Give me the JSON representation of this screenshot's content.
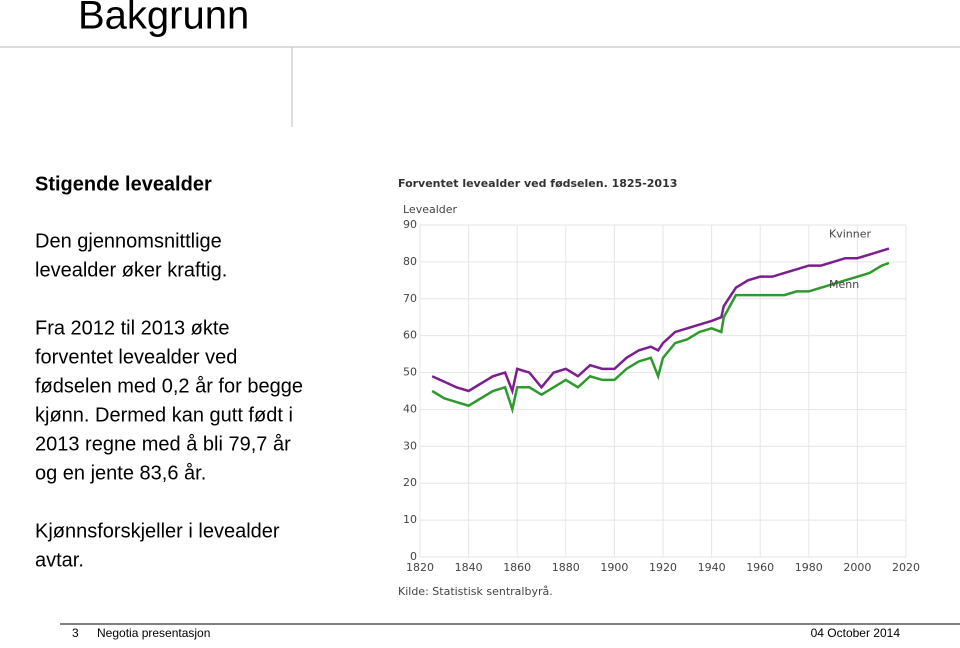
{
  "slide": {
    "title": "Bakgrunn",
    "heading": "Stigende levealder",
    "paragraphs": [
      [
        "Den gjennomsnittlige",
        "levealder øker kraftig."
      ],
      [
        "Fra 2012 til 2013 økte",
        "forventet levealder ved",
        "fødselen med 0,2 år for begge",
        "kjønn. Dermed kan gutt født i",
        "2013 regne med å bli 79,7 år",
        "og en jente 83,6 år."
      ],
      [
        "Kjønnsforskjeller i levealder",
        "avtar."
      ]
    ],
    "footer": {
      "page": "3",
      "name": "Negotia presentasjon",
      "date": "04 October 2014"
    }
  },
  "chart_data": {
    "type": "line",
    "title": "Forventet levealder ved fødselen. 1825-2013",
    "y_label": "Levealder",
    "source": "Kilde: Statistisk sentralbyrå.",
    "x": [
      1825,
      1830,
      1835,
      1840,
      1845,
      1850,
      1855,
      1858,
      1860,
      1865,
      1870,
      1875,
      1880,
      1885,
      1890,
      1895,
      1900,
      1905,
      1910,
      1915,
      1918,
      1920,
      1925,
      1930,
      1935,
      1940,
      1944,
      1945,
      1950,
      1955,
      1960,
      1965,
      1970,
      1975,
      1980,
      1985,
      1990,
      1995,
      2000,
      2005,
      2010,
      2013
    ],
    "series": [
      {
        "name": "Kvinner",
        "color": "#7b1f8f",
        "values": [
          49,
          47.5,
          46,
          45,
          47,
          49,
          50,
          45,
          51,
          50,
          46,
          50,
          51,
          49,
          52,
          51,
          51,
          54,
          56,
          57,
          56,
          58,
          61,
          62,
          63,
          64,
          65,
          68,
          73,
          75,
          76,
          76,
          77,
          78,
          79,
          79,
          80,
          81,
          81,
          82,
          83,
          83.6
        ]
      },
      {
        "name": "Menn",
        "color": "#2e9a2e",
        "values": [
          45,
          43,
          42,
          41,
          43,
          45,
          46,
          40,
          46,
          46,
          44,
          46,
          48,
          46,
          49,
          48,
          48,
          51,
          53,
          54,
          49,
          54,
          58,
          59,
          61,
          62,
          61,
          65,
          71,
          71,
          71,
          71,
          71,
          72,
          72,
          73,
          74,
          75,
          76,
          77,
          79,
          79.7
        ]
      }
    ],
    "xlim": [
      1820,
      2020
    ],
    "xticks": [
      1820,
      1840,
      1860,
      1880,
      1900,
      1920,
      1940,
      1960,
      1980,
      2000,
      2020
    ],
    "ylim": [
      0,
      90
    ],
    "yticks": [
      0,
      10,
      20,
      30,
      40,
      50,
      60,
      70,
      80,
      90
    ],
    "grid": true
  }
}
